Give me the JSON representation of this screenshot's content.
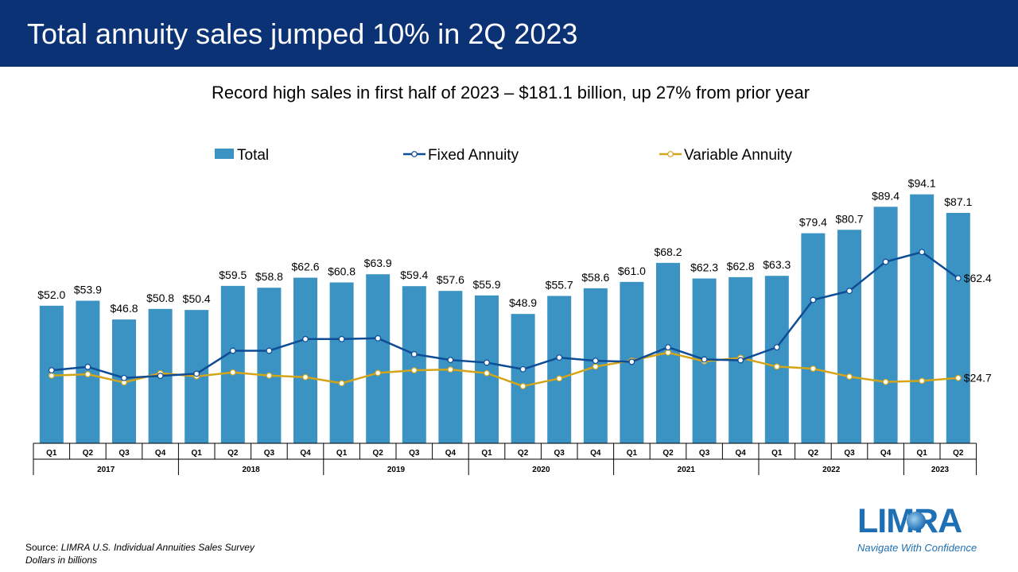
{
  "slide": {
    "title": "Total annuity sales jumped 10% in 2Q 2023",
    "subtitle": "Record high sales in first half of 2023 – $181.1 billion, up 27% from prior year",
    "source_prefix": "Source: ",
    "source_name": "LIMRA U.S. Individual Annuities Sales Survey",
    "units_note": "Dollars in billions"
  },
  "logo": {
    "brand": "LIMRA",
    "tagline": "Navigate With Confidence"
  },
  "chart_data": {
    "type": "bar",
    "title": "",
    "xlabel": "",
    "ylabel": "",
    "ylim": [
      0,
      100
    ],
    "grid": false,
    "legend_position": "top",
    "categories": [
      "Q1",
      "Q2",
      "Q3",
      "Q4",
      "Q1",
      "Q2",
      "Q3",
      "Q4",
      "Q1",
      "Q2",
      "Q3",
      "Q4",
      "Q1",
      "Q2",
      "Q3",
      "Q4",
      "Q1",
      "Q2",
      "Q3",
      "Q4",
      "Q1",
      "Q2",
      "Q3",
      "Q4",
      "Q1",
      "Q2"
    ],
    "years": [
      {
        "label": "2017",
        "quarters": 4
      },
      {
        "label": "2018",
        "quarters": 4
      },
      {
        "label": "2019",
        "quarters": 4
      },
      {
        "label": "2020",
        "quarters": 4
      },
      {
        "label": "2021",
        "quarters": 4
      },
      {
        "label": "2022",
        "quarters": 4
      },
      {
        "label": "2023",
        "quarters": 2
      }
    ],
    "series": [
      {
        "name": "Total",
        "type": "bar",
        "color": "#3a93c3",
        "values": [
          52.0,
          53.9,
          46.8,
          50.8,
          50.4,
          59.5,
          58.8,
          62.6,
          60.8,
          63.9,
          59.4,
          57.6,
          55.9,
          48.9,
          55.7,
          58.6,
          61.0,
          68.2,
          62.3,
          62.8,
          63.3,
          79.4,
          80.7,
          89.4,
          94.1,
          87.1
        ],
        "labels": [
          "$52.0",
          "$53.9",
          "$46.8",
          "$50.8",
          "$50.4",
          "$59.5",
          "$58.8",
          "$62.6",
          "$60.8",
          "$63.9",
          "$59.4",
          "$57.6",
          "$55.9",
          "$48.9",
          "$55.7",
          "$58.6",
          "$61.0",
          "$68.2",
          "$62.3",
          "$62.8",
          "$63.3",
          "$79.4",
          "$80.7",
          "$89.4",
          "$94.1",
          "$87.1"
        ]
      },
      {
        "name": "Fixed Annuity",
        "type": "line",
        "color": "#0f4c96",
        "values": [
          27.6,
          28.9,
          24.7,
          25.5,
          26.3,
          35.0,
          35.0,
          39.4,
          39.4,
          39.7,
          33.7,
          31.5,
          30.5,
          28.0,
          32.4,
          31.2,
          30.8,
          36.3,
          31.7,
          31.4,
          36.3,
          54.2,
          57.6,
          68.6,
          72.3,
          62.4
        ],
        "labels": [
          "",
          "",
          "",
          "",
          "",
          "",
          "",
          "",
          "",
          "",
          "",
          "",
          "",
          "",
          "",
          "",
          "",
          "",
          "",
          "",
          "",
          "",
          "",
          "",
          "",
          "$62.4"
        ]
      },
      {
        "name": "Variable Annuity",
        "type": "line",
        "color": "#d4a51a",
        "values": [
          25.6,
          26.1,
          23.0,
          26.5,
          25.3,
          26.8,
          25.6,
          25.0,
          22.7,
          26.6,
          27.6,
          27.9,
          26.5,
          21.6,
          24.5,
          29.0,
          31.3,
          34.3,
          31.0,
          32.3,
          29.0,
          28.2,
          25.2,
          23.2,
          23.6,
          24.7
        ],
        "labels": [
          "",
          "",
          "",
          "",
          "",
          "",
          "",
          "",
          "",
          "",
          "",
          "",
          "",
          "",
          "",
          "",
          "",
          "",
          "",
          "",
          "",
          "",
          "",
          "",
          "",
          "$24.7"
        ]
      }
    ]
  }
}
